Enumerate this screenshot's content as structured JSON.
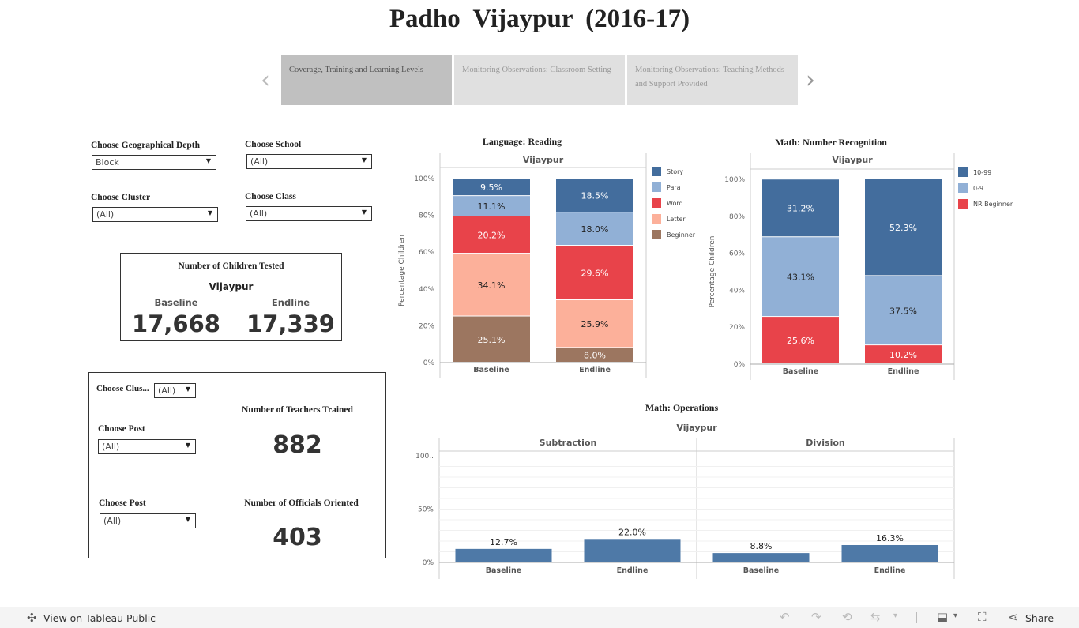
{
  "title": "Padho  Vijaypur  (2016-17)",
  "story": {
    "prev_glyph": "‹",
    "next_glyph": "›",
    "tabs": [
      {
        "label": "Coverage, Training and Learning Levels",
        "active": true
      },
      {
        "label": "Monitoring Observations: Classroom Setting",
        "active": false
      },
      {
        "label": "Monitoring Observations: Teaching Methods and Support Provided",
        "active": false
      }
    ]
  },
  "filters": {
    "geo_depth": {
      "label": "Choose Geographical Depth",
      "value": "Block"
    },
    "school": {
      "label": "Choose School",
      "value": "(All)"
    },
    "cluster": {
      "label": "Choose Cluster",
      "value": "(All)"
    },
    "class": {
      "label": "Choose Class",
      "value": "(All)"
    }
  },
  "children_tested": {
    "title": "Number of Children Tested",
    "region": "Vijaypur",
    "baseline_label": "Baseline",
    "endline_label": "Endline",
    "baseline_value": "17,668",
    "endline_value": "17,339"
  },
  "teachers": {
    "cluster_label": "Choose Clus...",
    "cluster_value": "(All)",
    "post_label": "Choose Post",
    "post_value": "(All)",
    "title": "Number of Teachers Trained",
    "value": "882"
  },
  "officials": {
    "post_label": "Choose Post",
    "post_value": "(All)",
    "title": "Number of Officials Oriented",
    "value": "403"
  },
  "chart_data": [
    {
      "id": "reading",
      "type": "bar",
      "stacked": true,
      "title": "Language: Reading",
      "panel": "Vijaypur",
      "ylabel": "Percentage Children",
      "ylim": [
        0,
        100
      ],
      "yticks": [
        "0%",
        "20%",
        "40%",
        "60%",
        "80%",
        "100%"
      ],
      "categories": [
        "Baseline",
        "Endline"
      ],
      "series": [
        {
          "name": "Beginner",
          "color": "#9c7660",
          "values": [
            25.1,
            8.0
          ],
          "labels": [
            "25.1%",
            "8.0%"
          ]
        },
        {
          "name": "Letter",
          "color": "#fcb09a",
          "values": [
            34.1,
            25.9
          ],
          "labels": [
            "34.1%",
            "25.9%"
          ]
        },
        {
          "name": "Word",
          "color": "#e8434a",
          "values": [
            20.2,
            29.6
          ],
          "labels": [
            "20.2%",
            "29.6%"
          ]
        },
        {
          "name": "Para",
          "color": "#91b0d6",
          "values": [
            11.1,
            18.0
          ],
          "labels": [
            "11.1%",
            "18.0%"
          ]
        },
        {
          "name": "Story",
          "color": "#436d9d",
          "values": [
            9.5,
            18.5
          ],
          "labels": [
            "9.5%",
            "18.5%"
          ]
        }
      ],
      "legend": [
        "Story",
        "Para",
        "Word",
        "Letter",
        "Beginner"
      ],
      "legend_position": "right"
    },
    {
      "id": "number",
      "type": "bar",
      "stacked": true,
      "title": "Math: Number Recognition",
      "panel": "Vijaypur",
      "ylabel": "Percentage Children",
      "ylim": [
        0,
        100
      ],
      "yticks": [
        "0%",
        "20%",
        "40%",
        "60%",
        "80%",
        "100%"
      ],
      "categories": [
        "Baseline",
        "Endline"
      ],
      "series": [
        {
          "name": "NR Beginner",
          "color": "#e8434a",
          "values": [
            25.6,
            10.2
          ],
          "labels": [
            "25.6%",
            "10.2%"
          ]
        },
        {
          "name": "0-9",
          "color": "#91b0d6",
          "values": [
            43.1,
            37.5
          ],
          "labels": [
            "43.1%",
            "37.5%"
          ]
        },
        {
          "name": "10-99",
          "color": "#436d9d",
          "values": [
            31.2,
            52.3
          ],
          "labels": [
            "31.2%",
            "52.3%"
          ]
        }
      ],
      "legend": [
        "10-99",
        "0-9",
        "NR Beginner"
      ],
      "legend_position": "right"
    },
    {
      "id": "operations",
      "type": "bar",
      "title": "Math: Operations",
      "panel": "Vijaypur",
      "ylim": [
        0,
        100
      ],
      "yticks": [
        "0%",
        "50%",
        "100.."
      ],
      "groups": [
        {
          "name": "Subtraction",
          "categories": [
            "Baseline",
            "Endline"
          ],
          "values": [
            12.7,
            22.0
          ],
          "labels": [
            "12.7%",
            "22.0%"
          ]
        },
        {
          "name": "Division",
          "categories": [
            "Baseline",
            "Endline"
          ],
          "values": [
            8.8,
            16.3
          ],
          "labels": [
            "8.8%",
            "16.3%"
          ]
        }
      ],
      "color": "#4e79a7"
    }
  ],
  "footer": {
    "view_label": "View on Tableau Public",
    "share_label": "Share"
  }
}
